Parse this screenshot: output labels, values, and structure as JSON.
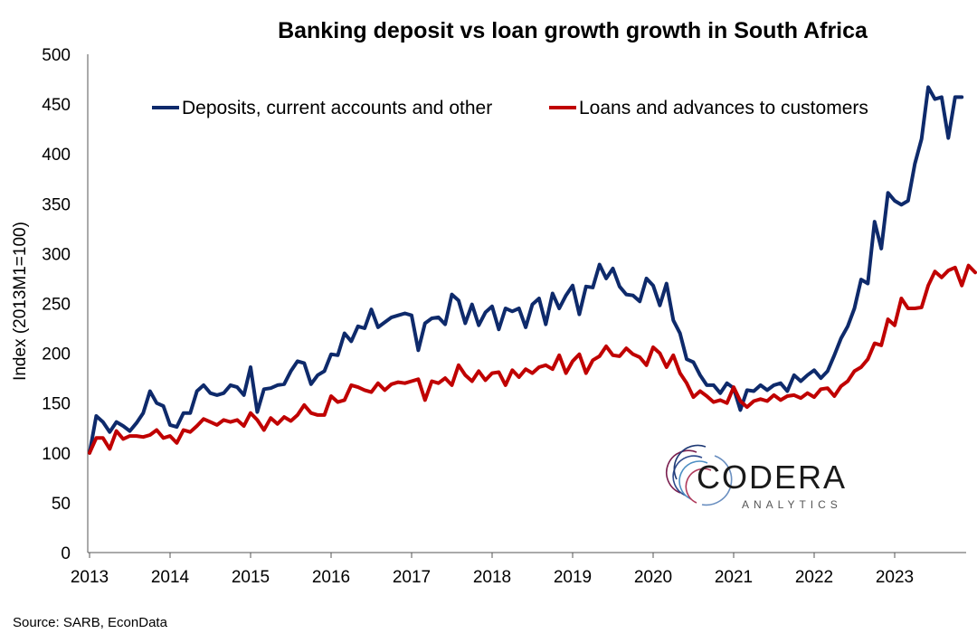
{
  "chart_data": {
    "type": "line",
    "title": "Banking deposit vs loan growth growth in South Africa",
    "ylabel": "Index (2013M1=100)",
    "xlabel": "",
    "ylim": [
      0,
      500
    ],
    "yticks": [
      "0",
      "50",
      "100",
      "150",
      "200",
      "250",
      "300",
      "350",
      "400",
      "450",
      "500"
    ],
    "xticks": [
      "2013",
      "2014",
      "2015",
      "2016",
      "2017",
      "2018",
      "2019",
      "2020",
      "2021",
      "2022",
      "2023"
    ],
    "x_start": "2013-01",
    "frequency": "monthly",
    "legend_position": "top",
    "source": "Source: SARB, EconData",
    "series": [
      {
        "name": "Deposits, current accounts and other",
        "color": "#0e2a6b",
        "values": [
          100,
          137,
          131,
          121,
          131,
          127,
          122,
          130,
          140,
          162,
          150,
          147,
          128,
          126,
          140,
          140,
          162,
          168,
          160,
          158,
          160,
          168,
          166,
          158,
          186,
          141,
          164,
          165,
          168,
          169,
          182,
          192,
          190,
          169,
          178,
          182,
          199,
          198,
          220,
          212,
          227,
          225,
          244,
          226,
          231,
          236,
          238,
          240,
          238,
          203,
          230,
          235,
          236,
          229,
          259,
          253,
          230,
          249,
          228,
          241,
          247,
          224,
          245,
          242,
          245,
          226,
          249,
          255,
          229,
          260,
          245,
          258,
          268,
          239,
          267,
          266,
          289,
          275,
          285,
          267,
          259,
          258,
          252,
          275,
          268,
          248,
          270,
          233,
          220,
          194,
          191,
          178,
          168,
          168,
          160,
          170,
          165,
          143,
          163,
          162,
          168,
          163,
          168,
          170,
          162,
          178,
          172,
          178,
          183,
          175,
          182,
          198,
          215,
          227,
          245,
          274,
          270,
          332,
          305,
          361,
          353,
          349,
          353,
          390,
          415,
          467,
          455,
          457,
          416,
          457,
          457
        ]
      },
      {
        "name": "Loans and advances to customers",
        "color": "#c00000",
        "values": [
          100,
          115,
          115,
          104,
          122,
          114,
          117,
          117,
          116,
          118,
          123,
          115,
          117,
          110,
          123,
          121,
          127,
          134,
          131,
          128,
          133,
          131,
          133,
          127,
          140,
          133,
          123,
          135,
          129,
          136,
          132,
          138,
          148,
          140,
          138,
          138,
          157,
          151,
          153,
          168,
          166,
          163,
          161,
          170,
          163,
          169,
          171,
          170,
          172,
          174,
          153,
          172,
          170,
          175,
          168,
          188,
          178,
          172,
          182,
          173,
          180,
          181,
          168,
          183,
          176,
          184,
          180,
          186,
          188,
          184,
          198,
          180,
          192,
          199,
          180,
          193,
          197,
          207,
          198,
          197,
          205,
          199,
          196,
          188,
          206,
          200,
          186,
          198,
          180,
          170,
          156,
          162,
          157,
          151,
          153,
          150,
          166,
          152,
          146,
          152,
          154,
          152,
          158,
          153,
          157,
          158,
          155,
          160,
          156,
          164,
          165,
          157,
          167,
          172,
          182,
          186,
          194,
          210,
          208,
          234,
          228,
          255,
          245,
          245,
          246,
          268,
          282,
          276,
          283,
          286,
          268,
          288,
          281
        ]
      }
    ]
  },
  "logo": {
    "name": "CODERA",
    "tagline": "ANALYTICS"
  }
}
